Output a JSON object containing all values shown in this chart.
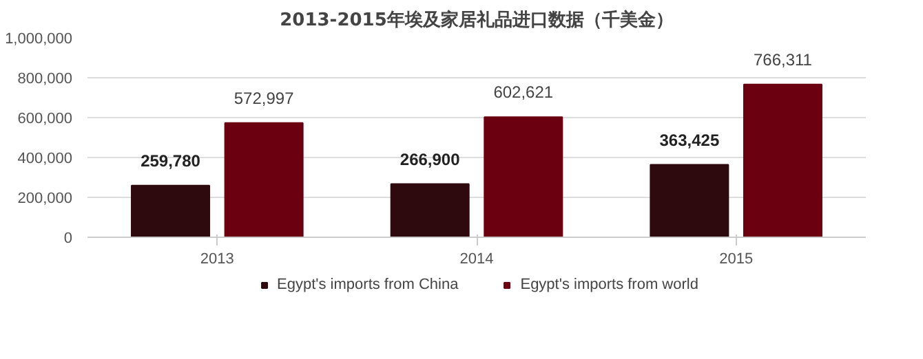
{
  "chart_data": {
    "type": "bar",
    "title": "2013-2015年埃及家居礼品进口数据（千美金）",
    "categories": [
      "2013",
      "2014",
      "2015"
    ],
    "series": [
      {
        "name": "Egypt's imports from China",
        "color": "#2e0a0e",
        "values": [
          259780,
          266900,
          363425
        ],
        "value_labels": [
          "259,780",
          "266,900",
          "363,425"
        ]
      },
      {
        "name": "Egypt's imports from world",
        "color": "#6b0010",
        "values": [
          572997,
          602621,
          766311
        ],
        "value_labels": [
          "572,997",
          "602,621",
          "766,311"
        ]
      }
    ],
    "ylim": [
      0,
      1000000
    ],
    "yticks": [
      0,
      {
        "value": 200000,
        "label": "200,000"
      },
      {
        "value": 400000,
        "label": "400,000"
      },
      {
        "value": 600000,
        "label": "600,000"
      },
      {
        "value": 800000,
        "label": "800,000"
      },
      {
        "value": 1000000,
        "label": "1,000,000"
      }
    ],
    "grid": "y",
    "legend": "bottom"
  }
}
